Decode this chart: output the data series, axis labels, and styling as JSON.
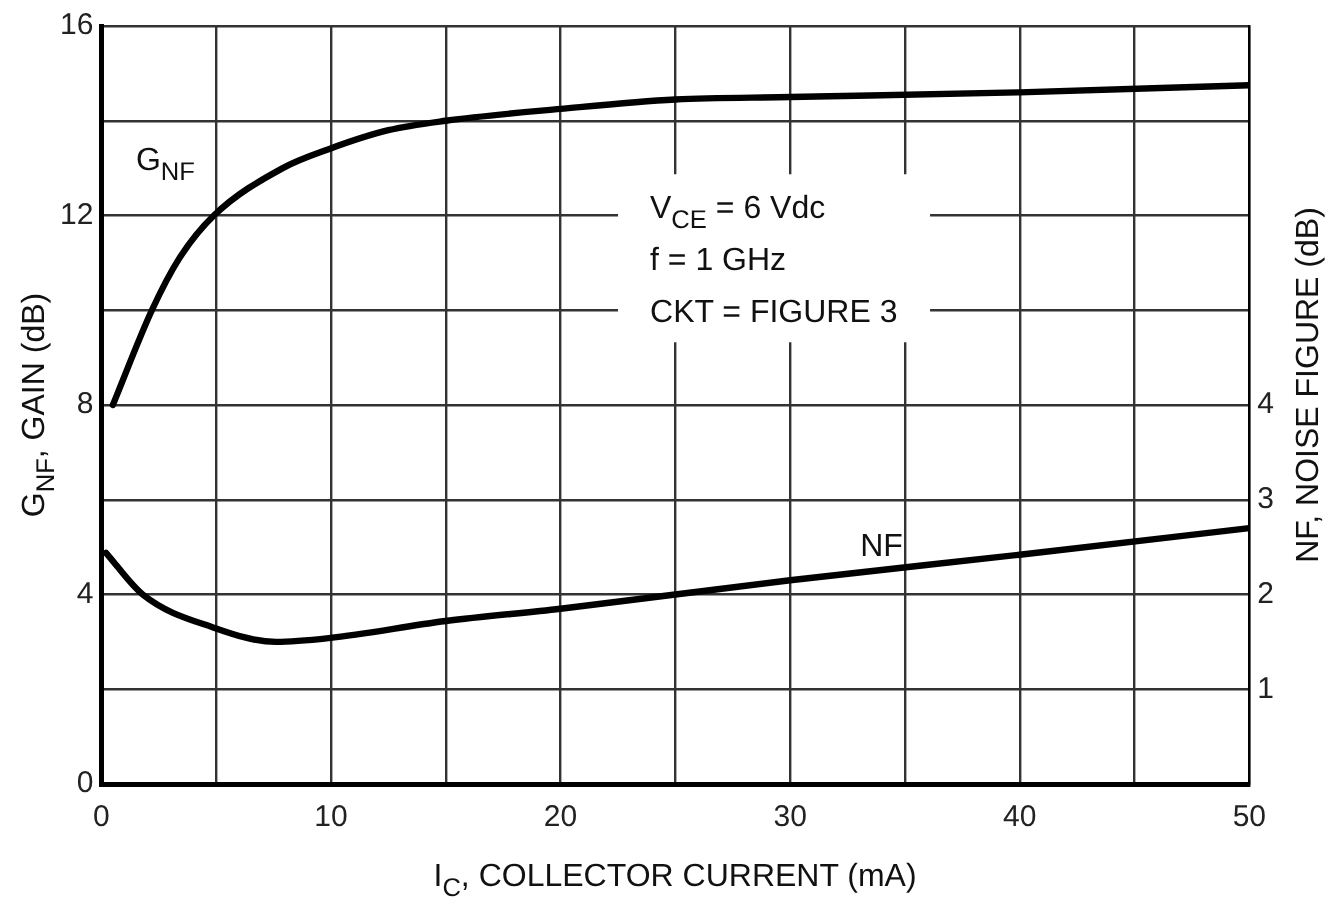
{
  "chart_data": {
    "type": "line",
    "xlabel": "I$_{C}$, COLLECTOR CURRENT (mA)",
    "ylabel": "G$_{NF}$, GAIN (dB)",
    "y2label": "NF, NOISE FIGURE (dB)",
    "annotations": [
      "V$_{CE}$ = 6 Vdc",
      "f = 1 GHz",
      "CKT = FIGURE 3"
    ],
    "series": [
      {
        "name": "G$_{NF}$",
        "color": "#000000",
        "x": [
          0.5,
          2.2,
          3.4,
          4.9,
          7.9,
          9.9,
          12.5,
          15,
          20,
          25,
          30,
          40,
          50
        ],
        "values": [
          8,
          10,
          11.1,
          12,
          13,
          13.4,
          13.8,
          14,
          14.25,
          14.45,
          14.5,
          14.6,
          14.75
        ]
      },
      {
        "name": "NF",
        "color": "#000000",
        "axis": "y2",
        "x": [
          0.2,
          1.8,
          4.9,
          7.6,
          9.9,
          15,
          20,
          25,
          30,
          40,
          50
        ],
        "values": [
          2.44,
          2,
          1.65,
          1.5,
          1.54,
          1.72,
          1.85,
          2,
          2.15,
          2.42,
          2.7
        ]
      }
    ],
    "xlim": [
      0,
      50
    ],
    "xticks": [
      0,
      {
        "value": 5,
        "label": null
      },
      10,
      {
        "value": 15,
        "label": null
      },
      20,
      {
        "value": 25,
        "label": null
      },
      30,
      {
        "value": 35,
        "label": null
      },
      40,
      {
        "value": 45,
        "label": null
      },
      50
    ],
    "ylim": [
      0,
      16
    ],
    "yticks": [
      0,
      {
        "value": 2,
        "label": null
      },
      4,
      {
        "value": 6,
        "label": null
      },
      8,
      {
        "value": 10,
        "label": null
      },
      12,
      {
        "value": 14,
        "label": null
      },
      16
    ],
    "y2lim": [
      0,
      8
    ],
    "y2ticks": [
      1,
      2,
      3,
      4
    ],
    "grid": true,
    "legend": false,
    "marker": "none",
    "line_style": "solid"
  }
}
